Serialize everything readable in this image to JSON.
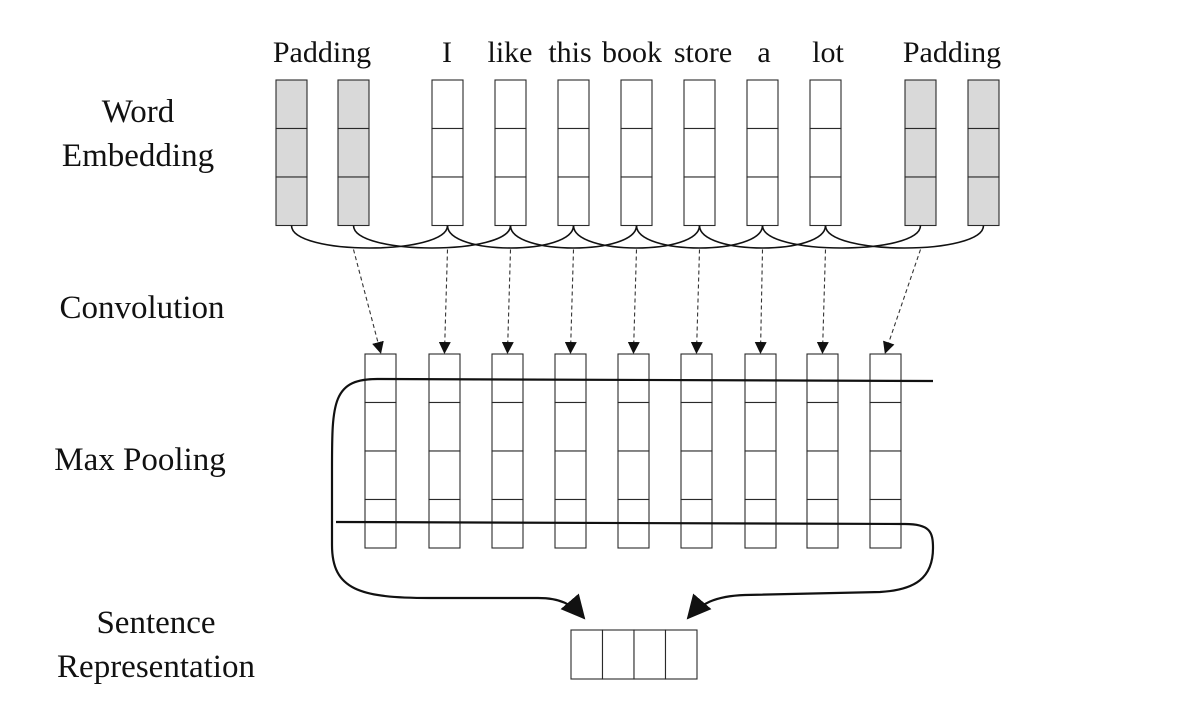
{
  "labels": {
    "word_embedding": [
      "Word",
      "Embedding"
    ],
    "convolution": "Convolution",
    "max_pooling": "Max Pooling",
    "sentence_representation": [
      "Sentence",
      "Representation"
    ]
  },
  "tokens": [
    "Padding",
    "I",
    "like",
    "this",
    "book",
    "store",
    "a",
    "lot",
    "Padding"
  ],
  "embedding_columns": [
    {
      "padding": true
    },
    {
      "padding": true
    },
    {
      "padding": false
    },
    {
      "padding": false
    },
    {
      "padding": false
    },
    {
      "padding": false
    },
    {
      "padding": false
    },
    {
      "padding": false
    },
    {
      "padding": false
    },
    {
      "padding": true
    },
    {
      "padding": true
    }
  ],
  "embedding_dim": 3,
  "conv_columns": 9,
  "conv_dim": 4,
  "sentence_dim": 4,
  "colors": {
    "padding_fill": "#d9d9d9",
    "cell_fill": "#ffffff",
    "line": "#111111"
  }
}
